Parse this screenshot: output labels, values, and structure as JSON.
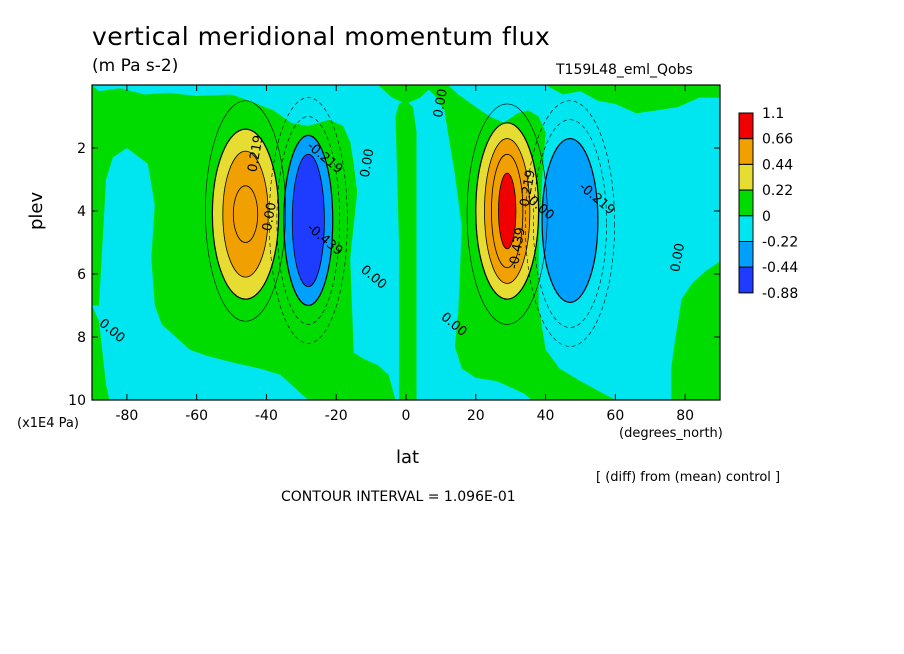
{
  "chart_data": {
    "type": "heatmap",
    "title": "vertical meridional momentum flux",
    "units": "(m Pa s-2)",
    "run_label": "T159L48_eml_Qobs",
    "xlabel": "lat",
    "x_units": "(degrees_north)",
    "ylabel": "plev",
    "y_units": "(x1E4 Pa)",
    "xlim": [
      -90,
      90
    ],
    "ylim": [
      10,
      0
    ],
    "x_ticks": [
      -80,
      -60,
      -40,
      -20,
      0,
      20,
      40,
      60,
      80
    ],
    "y_ticks": [
      2,
      4,
      6,
      8,
      10
    ],
    "footnote": "[ (diff) from (mean) control ]",
    "contour_interval_text": "CONTOUR INTERVAL = 1.096E-01",
    "colorbar": {
      "levels": [
        "1.1",
        "0.66",
        "0.44",
        "0.22",
        "0",
        "-0.22",
        "-0.44",
        "-0.88"
      ],
      "colors": [
        "#f00000",
        "#f0a000",
        "#e6dc32",
        "#00dc00",
        "#00e6f0",
        "#00a0ff",
        "#1e3cff"
      ]
    },
    "features": [
      {
        "lat": -46,
        "plev": 4.0,
        "value": 0.55
      },
      {
        "lat": -28,
        "plev": 4.3,
        "value": -0.6
      },
      {
        "lat": 29,
        "plev": 4.0,
        "value": 1.2
      },
      {
        "lat": 47,
        "plev": 4.4,
        "value": -0.45
      }
    ],
    "contour_labels": [
      {
        "text": "0.219",
        "lat": -42,
        "plev": 2.2
      },
      {
        "text": "-0.219",
        "lat": -24,
        "plev": 2.4
      },
      {
        "text": "0.00",
        "lat": -38,
        "plev": 4.2
      },
      {
        "text": "-0.439",
        "lat": -24,
        "plev": 5.0
      },
      {
        "text": "0.00",
        "lat": -10,
        "plev": 2.5
      },
      {
        "text": "0.00",
        "lat": -10,
        "plev": 6.2
      },
      {
        "text": "0.00",
        "lat": 11,
        "plev": 0.6
      },
      {
        "text": "0.00",
        "lat": 13,
        "plev": 7.7
      },
      {
        "text": "0.219",
        "lat": 36,
        "plev": 3.3
      },
      {
        "text": "0.00",
        "lat": 38,
        "plev": 4.0
      },
      {
        "text": "-0.439",
        "lat": 33,
        "plev": 5.2
      },
      {
        "text": "-0.219",
        "lat": 54,
        "plev": 3.7
      },
      {
        "text": "0.00",
        "lat": 79,
        "plev": 5.5
      },
      {
        "text": "0.00",
        "lat": -85,
        "plev": 7.9
      }
    ]
  }
}
